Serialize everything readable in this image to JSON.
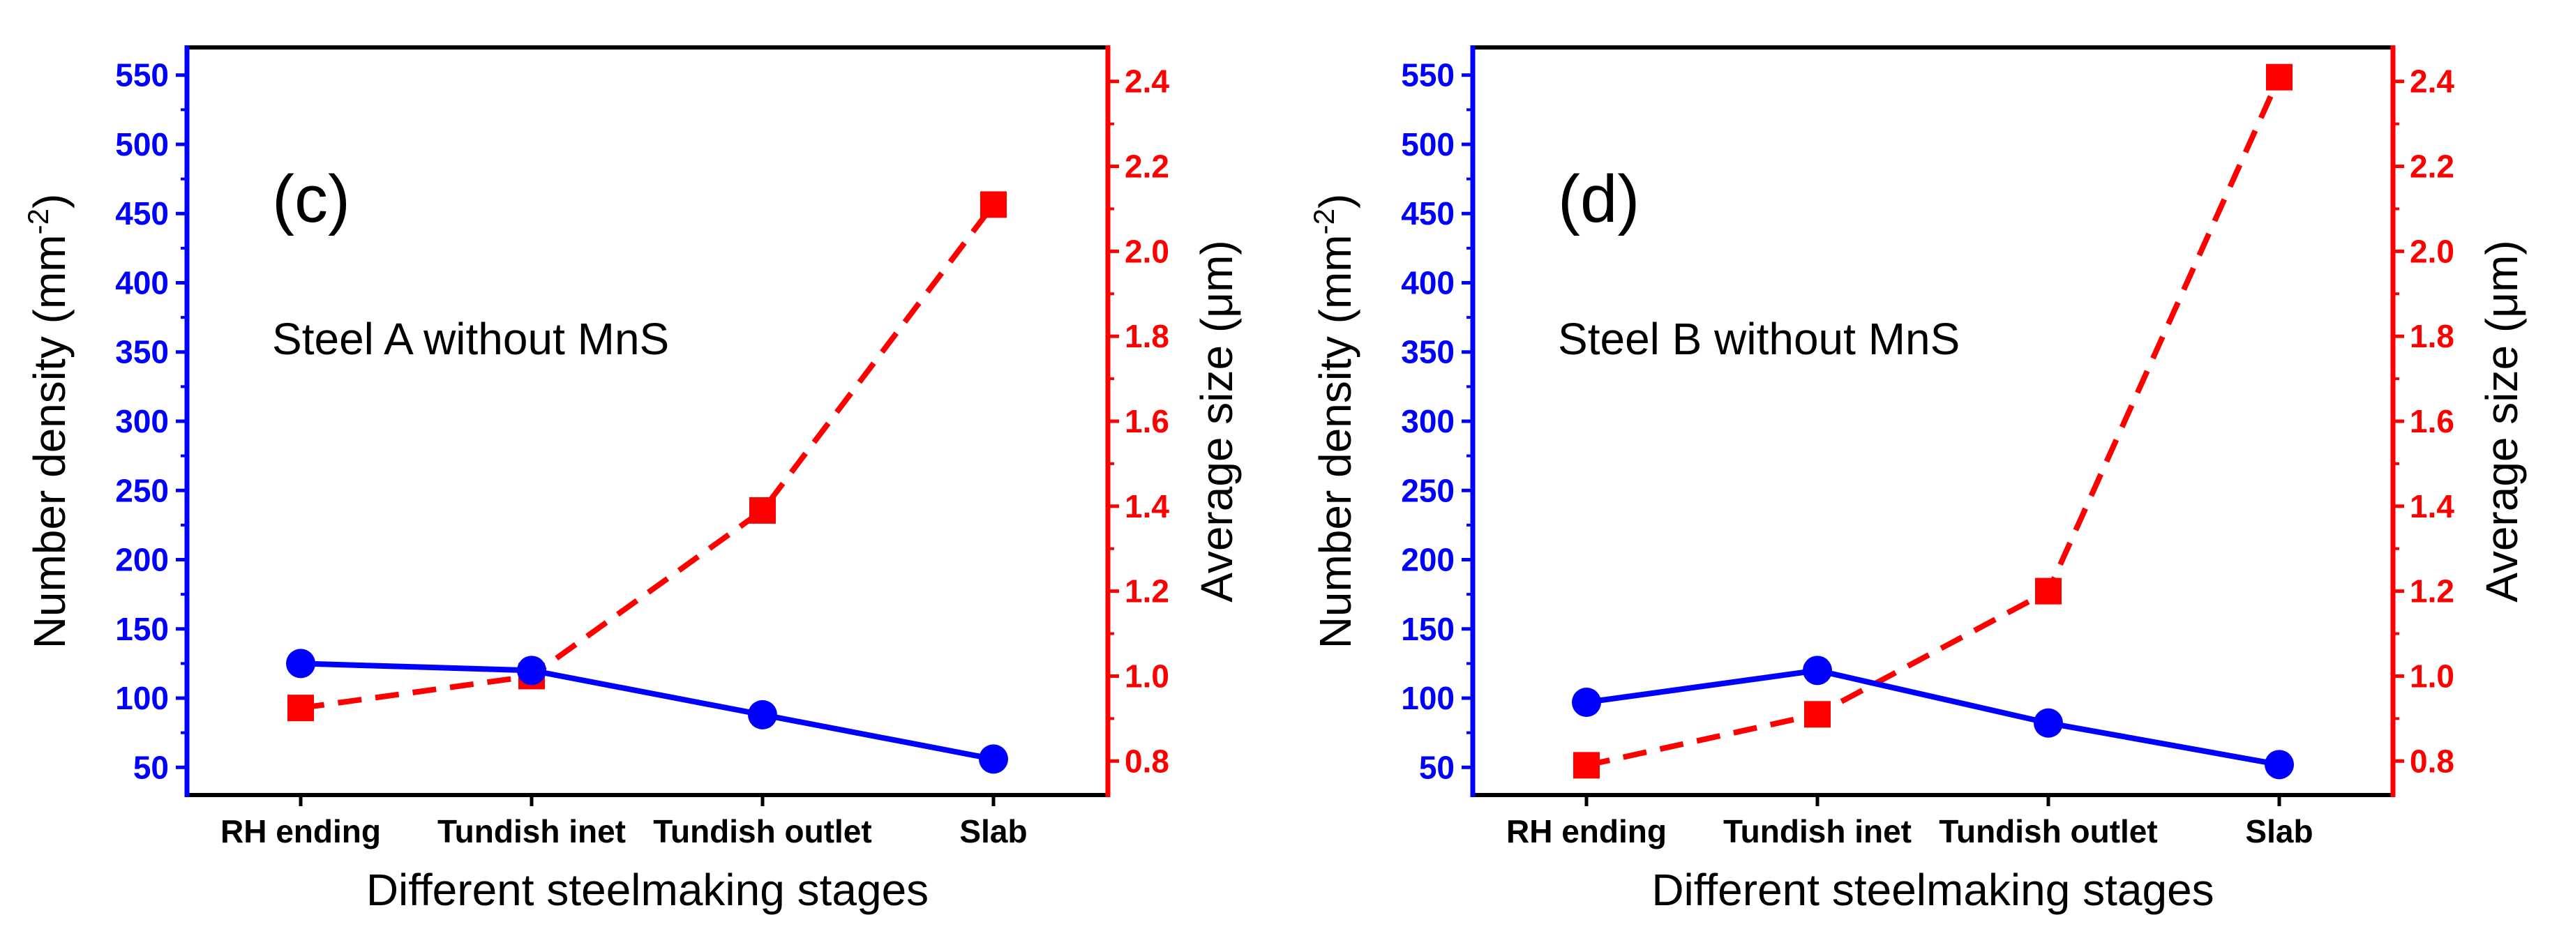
{
  "chart_data": [
    {
      "type": "line",
      "panel_label": "(c)",
      "annotation": "Steel A without MnS",
      "categories": [
        "RH ending",
        "Tundish inet",
        "Tundish outlet",
        "Slab"
      ],
      "xlabel": "Different steelmaking stages",
      "ylabel_left": [
        "Number density (mm",
        "-2",
        ")"
      ],
      "ylabel_right": "Average size (μm)",
      "ylim_left": [
        30,
        570
      ],
      "ylim_right": [
        0.72,
        2.48
      ],
      "yticks_left": [
        50,
        100,
        150,
        200,
        250,
        300,
        350,
        400,
        450,
        500,
        550
      ],
      "yticks_right": [
        0.8,
        1.0,
        1.2,
        1.4,
        1.6,
        1.8,
        2.0,
        2.2,
        2.4
      ],
      "series": [
        {
          "axis": "left",
          "marker": "circle",
          "line": "solid",
          "color": "#0000ff",
          "values": [
            125,
            120,
            88,
            56
          ]
        },
        {
          "axis": "right",
          "marker": "square",
          "line": "dashed",
          "color": "#ff0000",
          "values": [
            0.925,
            1.0,
            1.39,
            2.11
          ]
        }
      ]
    },
    {
      "type": "line",
      "panel_label": "(d)",
      "annotation": "Steel B without MnS",
      "categories": [
        "RH ending",
        "Tundish inet",
        "Tundish outlet",
        "Slab"
      ],
      "xlabel": "Different steelmaking stages",
      "ylabel_left": [
        "Number density (mm",
        "-2",
        ")"
      ],
      "ylabel_right": "Average size (μm)",
      "ylim_left": [
        30,
        570
      ],
      "ylim_right": [
        0.72,
        2.48
      ],
      "yticks_left": [
        50,
        100,
        150,
        200,
        250,
        300,
        350,
        400,
        450,
        500,
        550
      ],
      "yticks_right": [
        0.8,
        1.0,
        1.2,
        1.4,
        1.6,
        1.8,
        2.0,
        2.2,
        2.4
      ],
      "series": [
        {
          "axis": "left",
          "marker": "circle",
          "line": "solid",
          "color": "#0000ff",
          "values": [
            97,
            120,
            82,
            52
          ]
        },
        {
          "axis": "right",
          "marker": "square",
          "line": "dashed",
          "color": "#ff0000",
          "values": [
            0.79,
            0.91,
            1.2,
            2.41
          ]
        }
      ]
    }
  ]
}
